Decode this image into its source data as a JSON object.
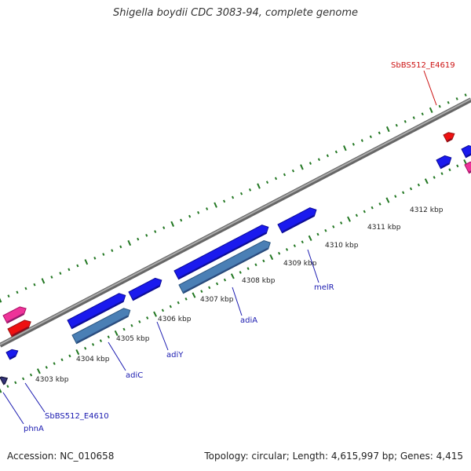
{
  "title": "Shigella boydii CDC 3083-94, complete genome",
  "footer": {
    "accession": "Accession: NC_010658",
    "summary": "Topology: circular; Length: 4,615,997 bp; Genes: 4,415"
  },
  "colors": {
    "backbone": "#888888",
    "ticks": "#227722",
    "gene_forward": "#1a1aee",
    "gene_reverse_cds": "#4a7fb5",
    "gene_rna": "#ee3399",
    "gene_red": "#ee1111",
    "label_blue": "#1a1ab0",
    "label_red": "#cc1111"
  },
  "ticks": [
    {
      "label": "4303 kbp"
    },
    {
      "label": "4304 kbp"
    },
    {
      "label": "4305 kbp"
    },
    {
      "label": "4306 kbp"
    },
    {
      "label": "4307 kbp"
    },
    {
      "label": "4308 kbp"
    },
    {
      "label": "4309 kbp"
    },
    {
      "label": "4310 kbp"
    },
    {
      "label": "4311 kbp"
    },
    {
      "label": "4312 kbp"
    }
  ],
  "gene_labels": [
    {
      "text": "phnA"
    },
    {
      "text": "SbBS512_E4610"
    },
    {
      "text": "adiC"
    },
    {
      "text": "adiY"
    },
    {
      "text": "adiA"
    },
    {
      "text": "melR"
    },
    {
      "text": "SbBS512_E4619"
    }
  ]
}
